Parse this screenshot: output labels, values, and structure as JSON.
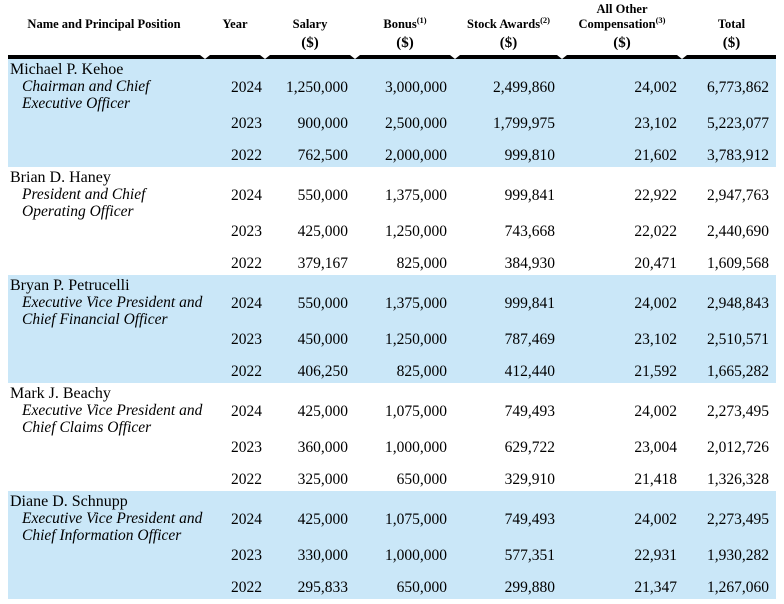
{
  "table": {
    "highlight_color": "#cae7f8",
    "rule_color": "#000000",
    "columns": [
      {
        "label": "Name and Principal Position",
        "sup": "",
        "unit": ""
      },
      {
        "label": "Year",
        "sup": "",
        "unit": ""
      },
      {
        "label": "Salary",
        "sup": "",
        "unit": "($)"
      },
      {
        "label": "Bonus",
        "sup": "(1)",
        "unit": "($)"
      },
      {
        "label": "Stock Awards",
        "sup": "(2)",
        "unit": "($)"
      },
      {
        "label": "All Other Compensation",
        "sup": "(3)",
        "unit": "($)"
      },
      {
        "label": "Total",
        "sup": "",
        "unit": "($)"
      }
    ],
    "groups": [
      {
        "name": "Michael P. Kehoe",
        "title1": "Chairman and Chief",
        "title2": "Executive Officer",
        "highlighted": true,
        "rows": [
          {
            "year": "2024",
            "salary": "1,250,000",
            "bonus": "3,000,000",
            "stock": "2,499,860",
            "other": "24,002",
            "total": "6,773,862"
          },
          {
            "year": "2023",
            "salary": "900,000",
            "bonus": "2,500,000",
            "stock": "1,799,975",
            "other": "23,102",
            "total": "5,223,077"
          },
          {
            "year": "2022",
            "salary": "762,500",
            "bonus": "2,000,000",
            "stock": "999,810",
            "other": "21,602",
            "total": "3,783,912"
          }
        ]
      },
      {
        "name": "Brian D. Haney",
        "title1": "President and Chief",
        "title2": "Operating Officer",
        "highlighted": false,
        "rows": [
          {
            "year": "2024",
            "salary": "550,000",
            "bonus": "1,375,000",
            "stock": "999,841",
            "other": "22,922",
            "total": "2,947,763"
          },
          {
            "year": "2023",
            "salary": "425,000",
            "bonus": "1,250,000",
            "stock": "743,668",
            "other": "22,022",
            "total": "2,440,690"
          },
          {
            "year": "2022",
            "salary": "379,167",
            "bonus": "825,000",
            "stock": "384,930",
            "other": "20,471",
            "total": "1,609,568"
          }
        ]
      },
      {
        "name": "Bryan P. Petrucelli",
        "title1": "Executive Vice President and",
        "title2": "Chief Financial Officer",
        "highlighted": true,
        "rows": [
          {
            "year": "2024",
            "salary": "550,000",
            "bonus": "1,375,000",
            "stock": "999,841",
            "other": "24,002",
            "total": "2,948,843"
          },
          {
            "year": "2023",
            "salary": "450,000",
            "bonus": "1,250,000",
            "stock": "787,469",
            "other": "23,102",
            "total": "2,510,571"
          },
          {
            "year": "2022",
            "salary": "406,250",
            "bonus": "825,000",
            "stock": "412,440",
            "other": "21,592",
            "total": "1,665,282"
          }
        ]
      },
      {
        "name": "Mark J. Beachy",
        "title1": "Executive Vice President and",
        "title2": "Chief Claims Officer",
        "highlighted": false,
        "rows": [
          {
            "year": "2024",
            "salary": "425,000",
            "bonus": "1,075,000",
            "stock": "749,493",
            "other": "24,002",
            "total": "2,273,495"
          },
          {
            "year": "2023",
            "salary": "360,000",
            "bonus": "1,000,000",
            "stock": "629,722",
            "other": "23,004",
            "total": "2,012,726"
          },
          {
            "year": "2022",
            "salary": "325,000",
            "bonus": "650,000",
            "stock": "329,910",
            "other": "21,418",
            "total": "1,326,328"
          }
        ]
      },
      {
        "name": "Diane D. Schnupp",
        "title1": "Executive Vice President and",
        "title2": "Chief Information Officer",
        "highlighted": true,
        "rows": [
          {
            "year": "2024",
            "salary": "425,000",
            "bonus": "1,075,000",
            "stock": "749,493",
            "other": "24,002",
            "total": "2,273,495"
          },
          {
            "year": "2023",
            "salary": "330,000",
            "bonus": "1,000,000",
            "stock": "577,351",
            "other": "22,931",
            "total": "1,930,282"
          },
          {
            "year": "2022",
            "salary": "295,833",
            "bonus": "650,000",
            "stock": "299,880",
            "other": "21,347",
            "total": "1,267,060"
          }
        ]
      }
    ]
  }
}
